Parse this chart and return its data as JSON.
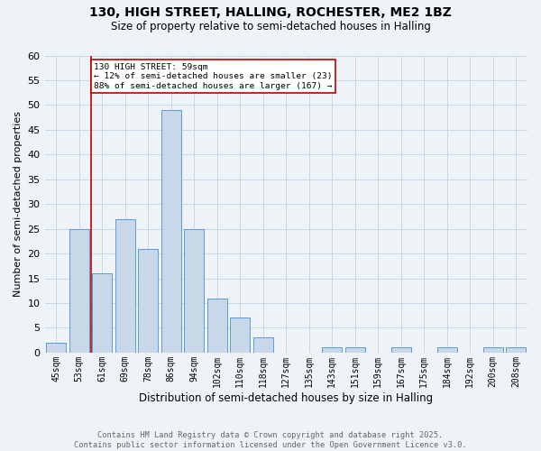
{
  "title_line1": "130, HIGH STREET, HALLING, ROCHESTER, ME2 1BZ",
  "title_line2": "Size of property relative to semi-detached houses in Halling",
  "xlabel": "Distribution of semi-detached houses by size in Halling",
  "ylabel": "Number of semi-detached properties",
  "bar_labels": [
    "45sqm",
    "53sqm",
    "61sqm",
    "69sqm",
    "78sqm",
    "86sqm",
    "94sqm",
    "102sqm",
    "110sqm",
    "118sqm",
    "127sqm",
    "135sqm",
    "143sqm",
    "151sqm",
    "159sqm",
    "167sqm",
    "175sqm",
    "184sqm",
    "192sqm",
    "200sqm",
    "208sqm"
  ],
  "bar_values": [
    2,
    25,
    16,
    27,
    21,
    49,
    25,
    11,
    7,
    3,
    0,
    0,
    1,
    1,
    0,
    1,
    0,
    1,
    0,
    1,
    1
  ],
  "bar_color": "#c8d8e8",
  "bar_edgecolor": "#5b9bd5",
  "vline_x_index": 2,
  "vline_color": "#c00000",
  "annotation_title": "130 HIGH STREET: 59sqm",
  "annotation_line2": "← 12% of semi-detached houses are smaller (23)",
  "annotation_line3": "88% of semi-detached houses are larger (167) →",
  "annotation_box_color": "#c00000",
  "ylim": [
    0,
    60
  ],
  "yticks": [
    0,
    5,
    10,
    15,
    20,
    25,
    30,
    35,
    40,
    45,
    50,
    55,
    60
  ],
  "grid_color": "#c5d8e8",
  "background_color": "#eef3f8",
  "footer_line1": "Contains HM Land Registry data © Crown copyright and database right 2025.",
  "footer_line2": "Contains public sector information licensed under the Open Government Licence v3.0.",
  "n_bars": 21
}
